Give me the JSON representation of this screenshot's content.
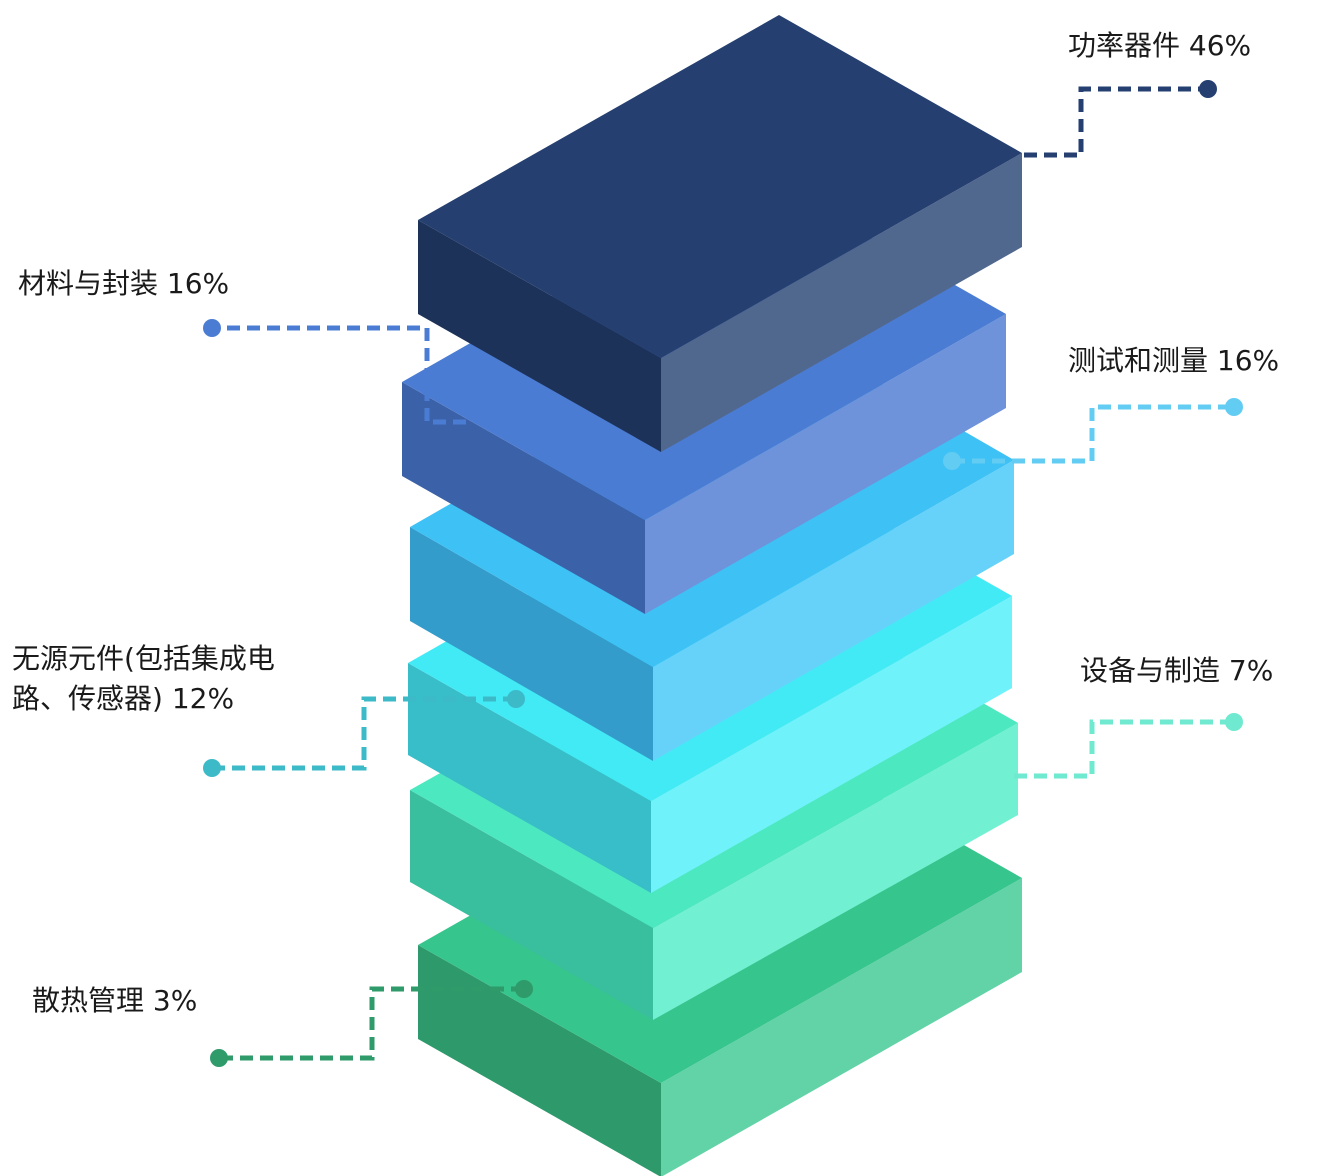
{
  "chart_data": {
    "type": "stacked-isometric-layers",
    "layers_bottom_to_top": [
      {
        "name": "散热管理",
        "value": 3,
        "label": "散热管理 3%",
        "colors": {
          "top": "#36C58C",
          "left": "#2E9A6C",
          "right": "#62D2A7"
        },
        "line_color": "#2F9A6A"
      },
      {
        "name": "设备与制造",
        "value": 7,
        "label": "设备与制造 7%",
        "colors": {
          "top": "#4CE8C0",
          "left": "#3ABF9E",
          "right": "#72F0D2"
        },
        "line_color": "#6FE9D0"
      },
      {
        "name": "无源元件(包括集成电路、传感器)",
        "value": 12,
        "label_lines": [
          "无源元件(包括集成电",
          "路、传感器) 12%"
        ],
        "colors": {
          "top": "#42EAF6",
          "left": "#38BEC8",
          "right": "#70F2FA"
        },
        "line_color": "#3CBAC8"
      },
      {
        "name": "测试和测量",
        "value": 16,
        "label": "测试和测量 16%",
        "colors": {
          "top": "#3EC1F5",
          "left": "#349CCA",
          "right": "#66D2FA"
        },
        "line_color": "#63CCF3"
      },
      {
        "name": "材料与封装",
        "value": 16,
        "label": "材料与封装 16%",
        "colors": {
          "top": "#4B7CD4",
          "left": "#3B62A8",
          "right": "#6E93DA"
        },
        "line_color": "#4B7CD4"
      },
      {
        "name": "功率器件",
        "value": 46,
        "label": "功率器件 46%",
        "colors": {
          "top": "#253F70",
          "left": "#1D3258",
          "right": "#51688E"
        },
        "line_color": "#253F70"
      }
    ]
  }
}
